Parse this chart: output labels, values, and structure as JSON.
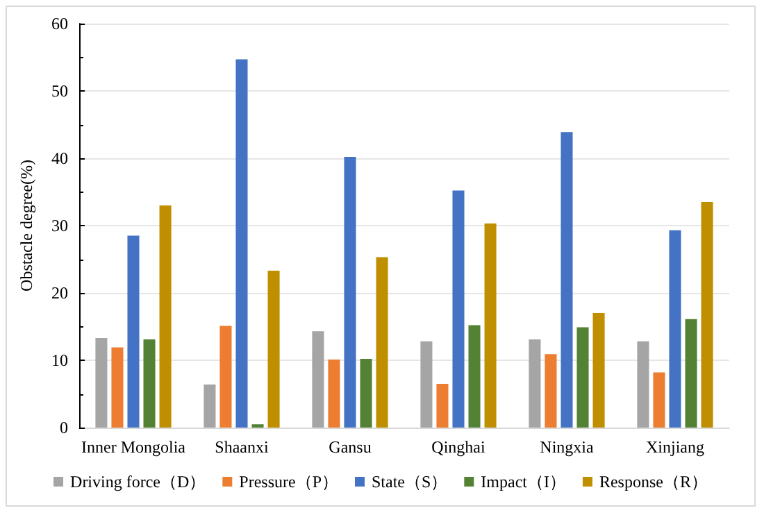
{
  "chart_data": {
    "type": "bar",
    "ylabel": "Obstacle degree(%)",
    "categories": [
      "Inner Mongolia",
      "Shaanxi",
      "Gansu",
      "Qinghai",
      "Ningxia",
      "Xinjiang"
    ],
    "series": [
      {
        "name": "Driving force（D）",
        "color": "#a5a5a5",
        "values": [
          13.3,
          6.4,
          14.3,
          12.8,
          13.1,
          12.8
        ]
      },
      {
        "name": "Pressure（P）",
        "color": "#ed7d31",
        "values": [
          11.9,
          15.1,
          10.1,
          6.5,
          10.9,
          8.2
        ]
      },
      {
        "name": "State（S）",
        "color": "#4472c4",
        "values": [
          28.5,
          54.7,
          40.2,
          35.2,
          43.9,
          29.3
        ]
      },
      {
        "name": "Impact（I）",
        "color": "#548235",
        "values": [
          13.1,
          0.5,
          10.2,
          15.2,
          14.9,
          16.1
        ]
      },
      {
        "name": "Response（R）",
        "color": "#bf8f00",
        "values": [
          33.0,
          23.3,
          25.3,
          30.3,
          17.0,
          33.5
        ]
      }
    ],
    "ylim": [
      0,
      60
    ],
    "yticks": [
      0,
      10,
      20,
      30,
      40,
      50,
      60
    ],
    "grid": "y",
    "legend": "bottom"
  }
}
